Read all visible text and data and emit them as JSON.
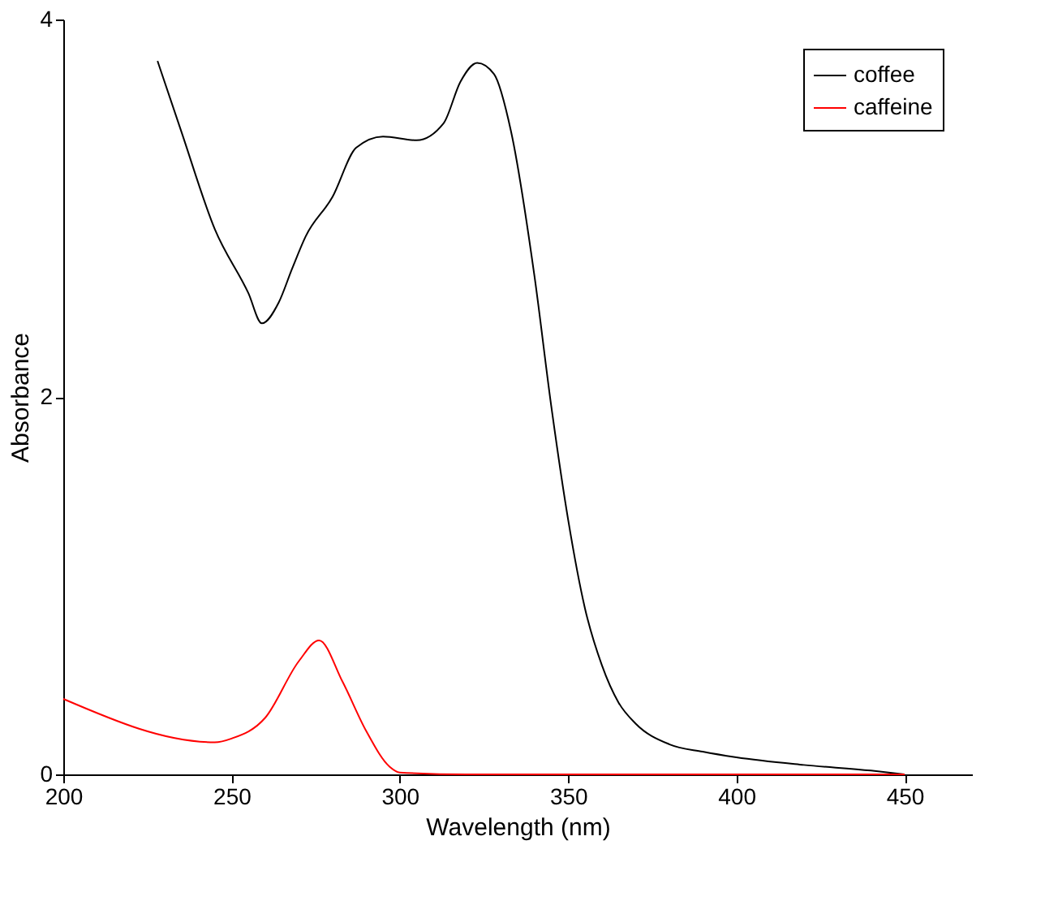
{
  "chart_data": {
    "type": "line",
    "xlabel": "Wavelength (nm)",
    "ylabel": "Absorbance",
    "xlim": [
      200,
      470
    ],
    "xticks": [
      200,
      250,
      300,
      350,
      400,
      450
    ],
    "ylim": [
      0,
      4
    ],
    "yticks": [
      0,
      2,
      4
    ],
    "grid": false,
    "legend": "top right",
    "line_style": "solid",
    "marker": "none",
    "series": [
      {
        "name": "coffee",
        "color": "#000000",
        "x": [
          228,
          235,
          245,
          255,
          259,
          264,
          268,
          272,
          280,
          287,
          295,
          305,
          313,
          318,
          323,
          328,
          333,
          340,
          345,
          350,
          355,
          360,
          365,
          370,
          380,
          390,
          400,
          420,
          440,
          450
        ],
        "values": [
          3.78,
          3.41,
          2.89,
          2.55,
          2.39,
          2.5,
          2.68,
          2.85,
          3.06,
          3.32,
          3.38,
          3.36,
          3.45,
          3.67,
          3.77,
          3.71,
          3.41,
          2.64,
          1.95,
          1.35,
          0.88,
          0.58,
          0.38,
          0.27,
          0.16,
          0.12,
          0.09,
          0.05,
          0.02,
          0.0
        ]
      },
      {
        "name": "caffeine",
        "color": "#ff0000",
        "x": [
          200,
          245,
          250,
          260,
          270,
          276,
          283,
          290,
          297,
          300,
          320,
          450
        ],
        "values": [
          0.4,
          0.17,
          0.19,
          0.3,
          0.6,
          0.71,
          0.49,
          0.23,
          0.04,
          0.01,
          0.0,
          0.0
        ]
      }
    ]
  }
}
